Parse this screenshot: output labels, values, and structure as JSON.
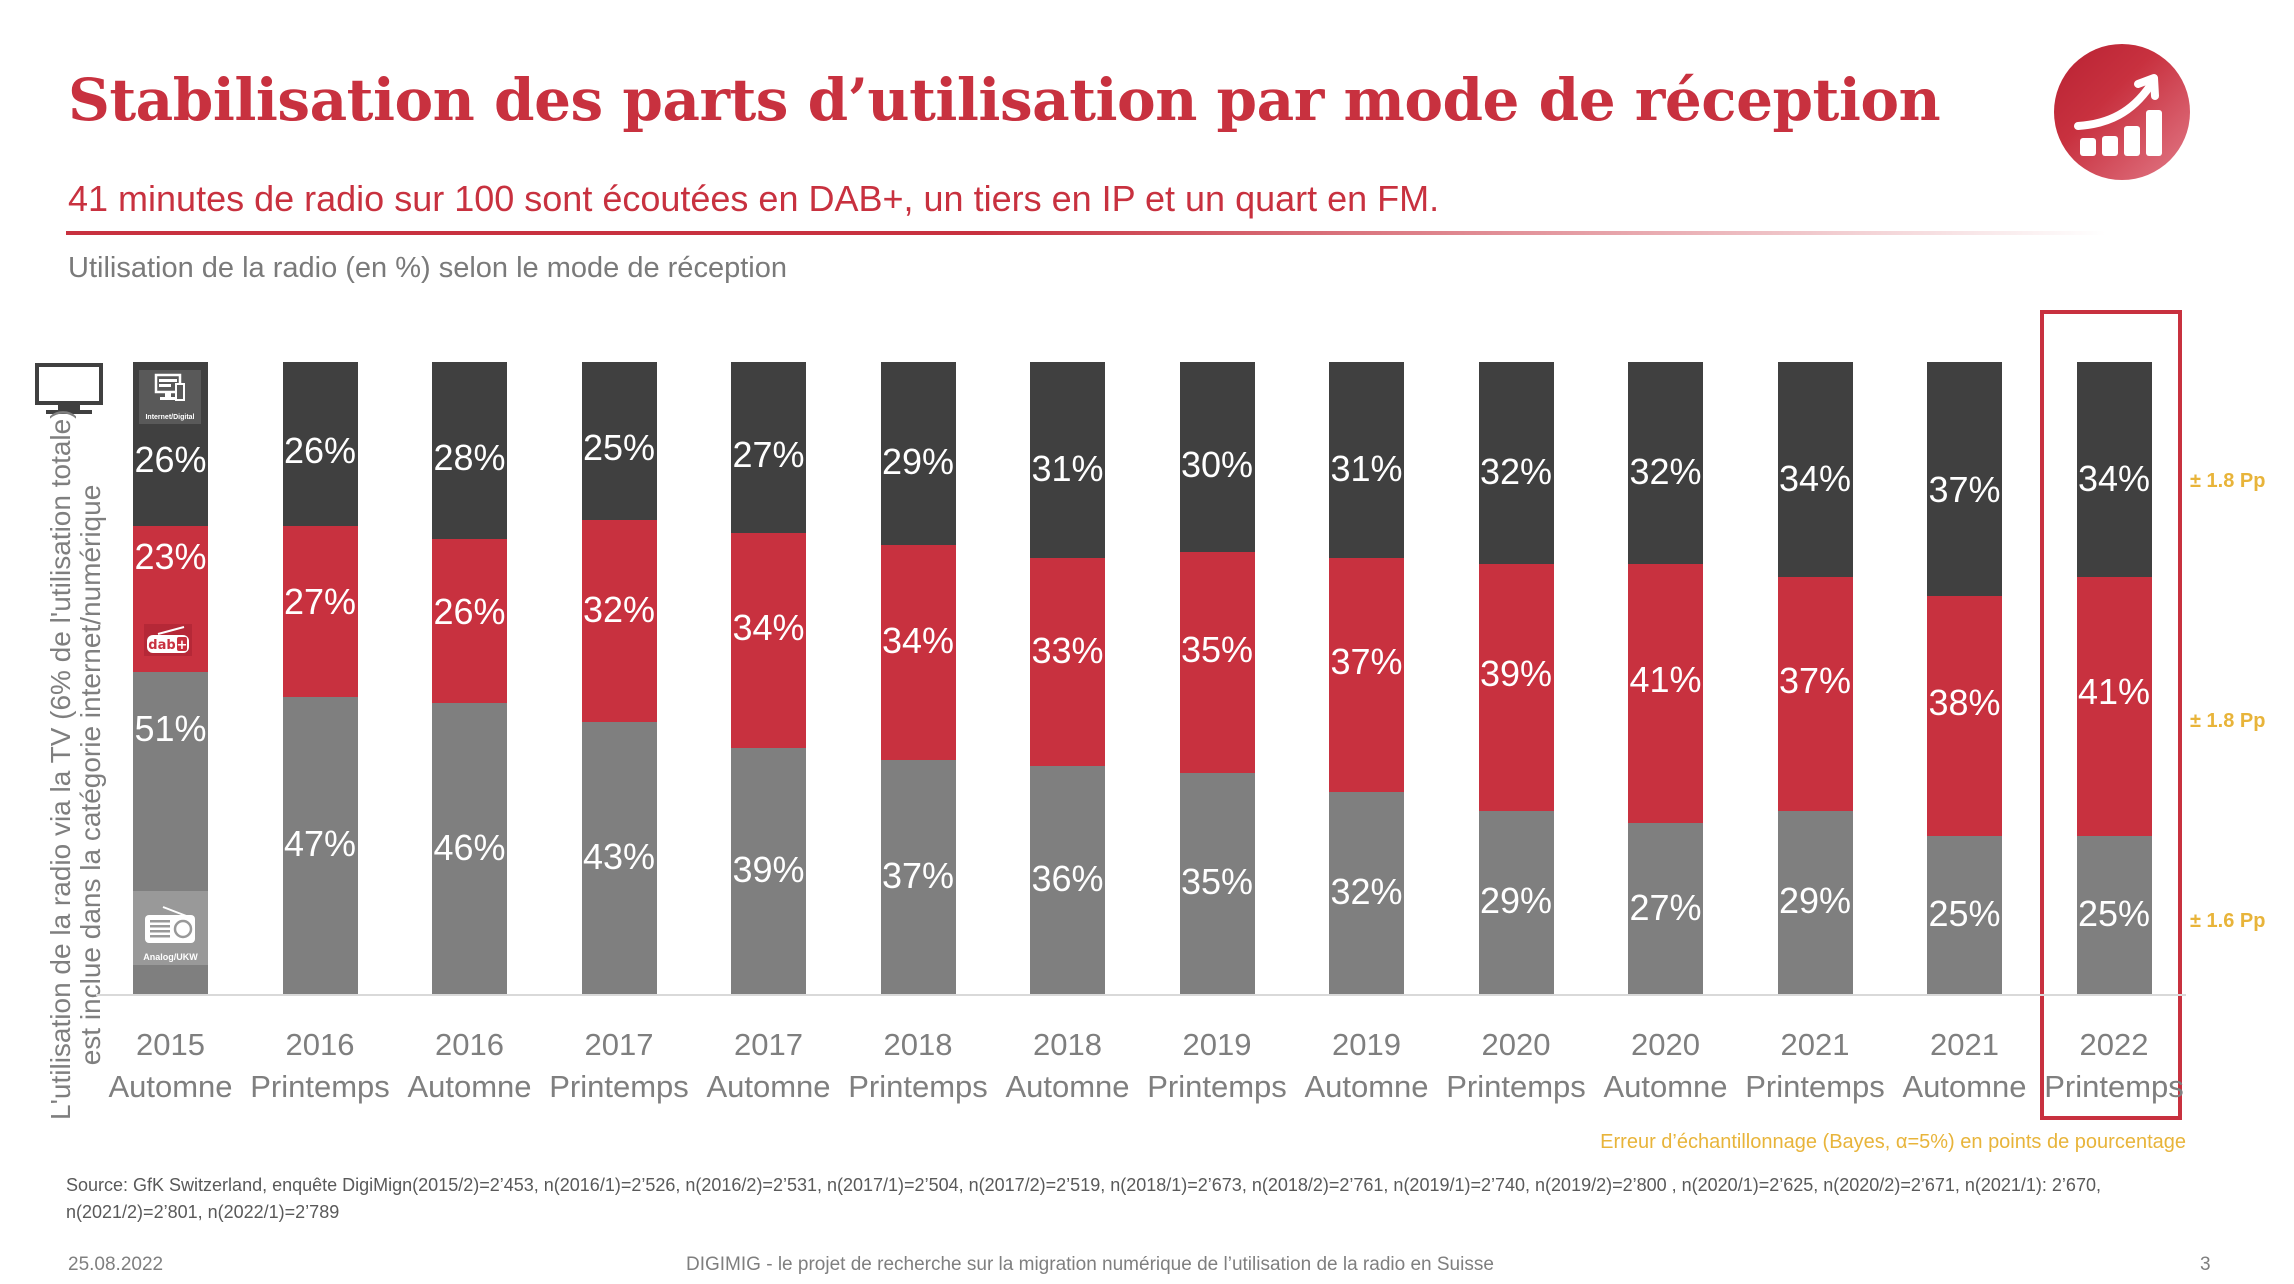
{
  "header": {
    "title": "Stabilisation des parts d’utilisation par mode de réception",
    "subtitle": "41 minutes de radio sur 100 sont écoutées en DAB+, un tiers en IP et un quart en FM.",
    "chart_subtitle": "Utilisation de la radio (en %) selon le mode de réception",
    "logo_icon": "chart-growth-icon"
  },
  "y_note": {
    "line1": "L'utilisation de la radio via la TV (6% de l'utilisation totale)",
    "line2": "est inclue dans la catégorie internet/numérique",
    "icon": "tv-icon"
  },
  "colors": {
    "internet": "#404040",
    "dab": "#c8313f",
    "analog": "#7f7f7f",
    "accent": "#c8313f",
    "error_text": "#e8b43a"
  },
  "chart_data": {
    "type": "bar",
    "stacked": true,
    "title": "Utilisation de la radio (en %) selon le mode de réception",
    "xlabel": "",
    "ylabel": "",
    "ylim": [
      0,
      100
    ],
    "grid": false,
    "categories": [
      [
        "2015",
        "Automne"
      ],
      [
        "2016",
        "Printemps"
      ],
      [
        "2016",
        "Automne"
      ],
      [
        "2017",
        "Printemps"
      ],
      [
        "2017",
        "Automne"
      ],
      [
        "2018",
        "Printemps"
      ],
      [
        "2018",
        "Automne"
      ],
      [
        "2019",
        "Printemps"
      ],
      [
        "2019",
        "Automne"
      ],
      [
        "2020",
        "Printemps"
      ],
      [
        "2020",
        "Automne"
      ],
      [
        "2021",
        "Printemps"
      ],
      [
        "2021",
        "Automne"
      ],
      [
        "2022",
        "Printemps"
      ]
    ],
    "series": [
      {
        "name": "Analog/UKW",
        "color": "#7f7f7f",
        "values": [
          51,
          47,
          46,
          43,
          39,
          37,
          36,
          35,
          32,
          29,
          27,
          29,
          25,
          25
        ]
      },
      {
        "name": "DAB+",
        "color": "#c8313f",
        "values": [
          23,
          27,
          26,
          32,
          34,
          34,
          33,
          35,
          37,
          39,
          41,
          37,
          38,
          41
        ]
      },
      {
        "name": "Internet/Digital",
        "color": "#404040",
        "values": [
          26,
          26,
          28,
          25,
          27,
          29,
          31,
          30,
          31,
          32,
          32,
          34,
          37,
          34
        ]
      }
    ],
    "series_icons": {
      "Internet/Digital": {
        "icon": "computer-icon",
        "label": "Internet/Digital"
      },
      "DAB+": {
        "icon": "dab-plus-icon",
        "label": "dab+"
      },
      "Analog/UKW": {
        "icon": "radio-icon",
        "label": "Analog/UKW"
      }
    },
    "highlighted_category_index": 13,
    "error_margins": [
      {
        "series": "Internet/Digital",
        "label": "± 1.8 Pp"
      },
      {
        "series": "DAB+",
        "label": "± 1.8 Pp"
      },
      {
        "series": "Analog/UKW",
        "label": "±  1.6 Pp"
      }
    ],
    "error_note": "Erreur d’échantillonnage (Bayes, α=5%) en points de pourcentage"
  },
  "footer": {
    "source": "Source: GfK Switzerland, enquête DigiMign(2015/2)=2’453, n(2016/1)=2’526, n(2016/2)=2’531, n(2017/1)=2’504, n(2017/2)=2’519, n(2018/1)=2’673, n(2018/2)=2’761, n(2019/1)=2’740, n(2019/2)=2’800 , n(2020/1)=2’625, n(2020/2)=2’671, n(2021/1): 2’670, n(2021/2)=2’801, n(2022/1)=2’789",
    "date": "25.08.2022",
    "project": "DIGIMIG - le projet de recherche sur la migration numérique de l’utilisation de la radio en Suisse",
    "page": "3"
  }
}
